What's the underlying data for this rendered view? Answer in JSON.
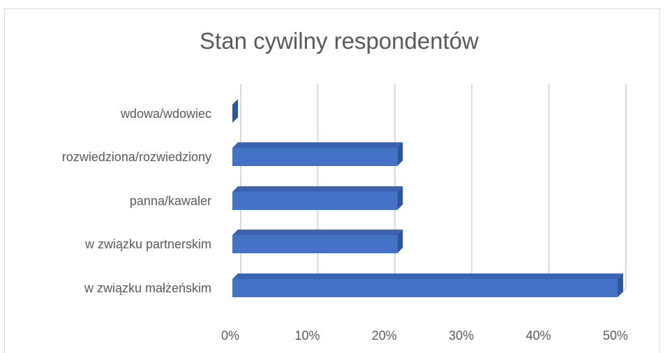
{
  "chart_data": {
    "type": "bar",
    "orientation": "horizontal",
    "title": "Stan cywilny respondentów",
    "categories": [
      "wdowa/wdowiec",
      "rozwiedziona/rozwiedziony",
      "panna/kawaler",
      "w związku partnerskim",
      "w związku małżeńskim"
    ],
    "values": [
      0,
      21.4,
      21.4,
      21.4,
      50
    ],
    "xlim": [
      0,
      50
    ],
    "x_ticks": [
      "0%",
      "10%",
      "20%",
      "30%",
      "40%",
      "50%"
    ],
    "grid": true,
    "legend": "none",
    "colors": {
      "bar_front": "#4472c4",
      "bar_top": "#3a64b3",
      "bar_side": "#2f5597",
      "grid": "#d9d9d9",
      "text": "#595959"
    }
  }
}
